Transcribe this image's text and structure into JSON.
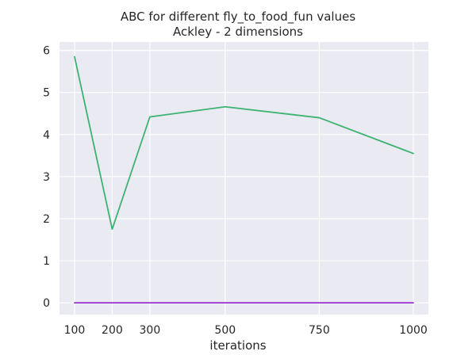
{
  "chart_data": {
    "type": "line",
    "title": "ABC for different fly_to_food_fun values",
    "subtitle": "Ackley - 2 dimensions",
    "xlabel": "iterations",
    "ylabel": "",
    "x": [
      100,
      200,
      300,
      500,
      750,
      1000
    ],
    "x_tick_labels": [
      "100",
      "200",
      "300",
      "500",
      "750",
      "1000"
    ],
    "y_ticks": [
      0,
      1,
      2,
      3,
      4,
      5,
      6
    ],
    "ylim": [
      -0.28,
      6.2
    ],
    "xlim": [
      60,
      1040
    ],
    "grid": true,
    "legend": "none",
    "series": [
      {
        "values": [
          5.85,
          1.75,
          4.42,
          4.66,
          4.4,
          3.55
        ],
        "color": "#3cb371"
      },
      {
        "values": [
          0.0,
          0.0,
          0.0,
          0.0,
          0.0,
          0.0
        ],
        "color": "#9932cc"
      }
    ]
  },
  "colors": {
    "plot_background": "#eaeaf2",
    "grid": "#ffffff",
    "text": "#262626"
  }
}
